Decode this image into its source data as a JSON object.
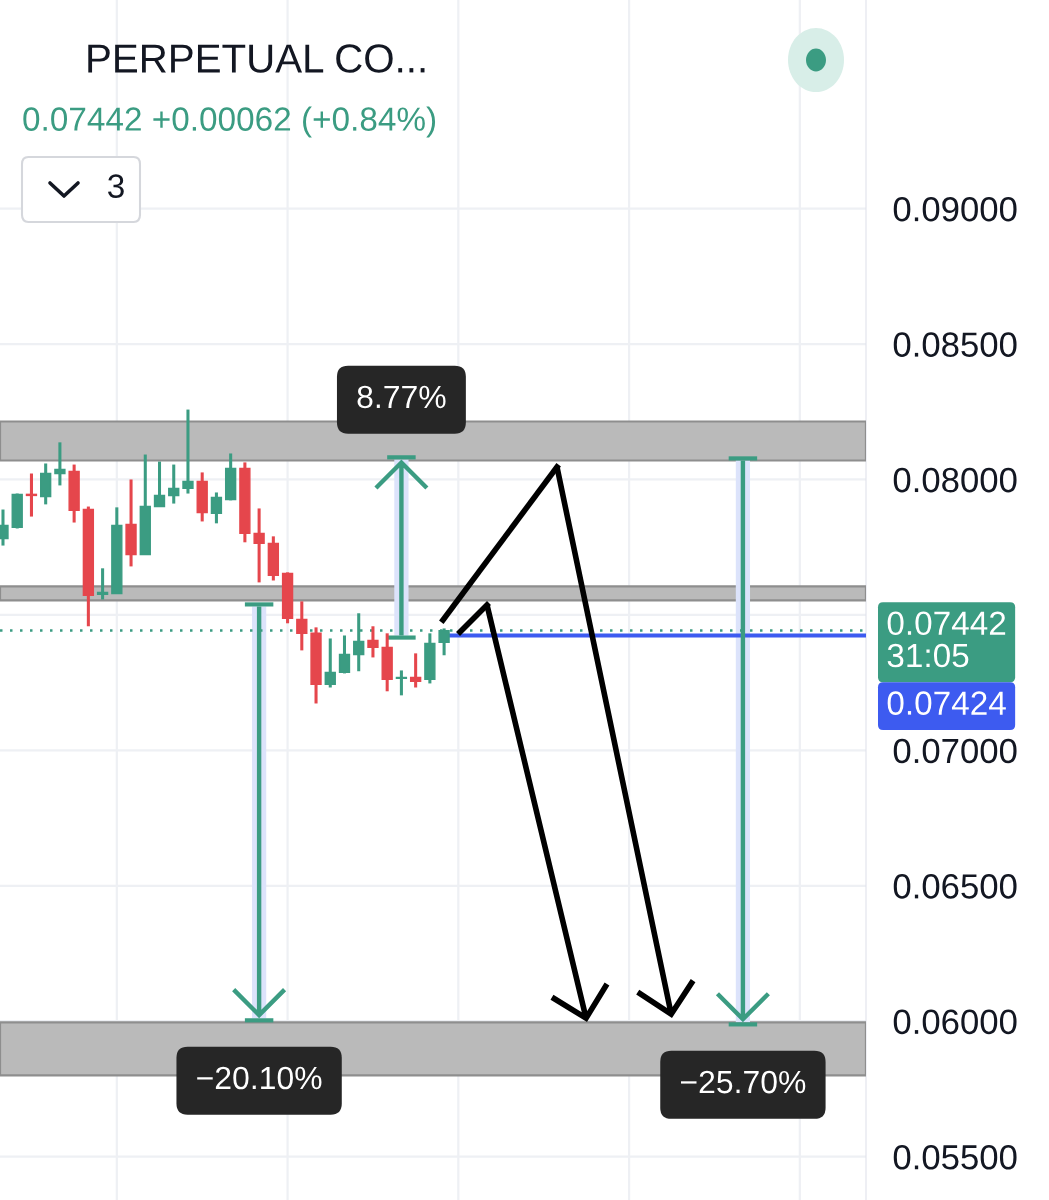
{
  "chart_data": {
    "type": "candlestick",
    "title": "PERPETUAL CO...",
    "subtitle": "0.07442 +0.00062 (+0.84%)",
    "annotations": [
      "3",
      {
        "text": "8.77%",
        "y": 0.08074
      },
      {
        "text": "−20.10%",
        "y": 0.06011
      },
      {
        "text": "−25.70%",
        "y": 0.05996
      }
    ],
    "categories": [
      null,
      null,
      null,
      null,
      null,
      null,
      null,
      null,
      null,
      null,
      null,
      null,
      null,
      null,
      null,
      null,
      null,
      null,
      null,
      null,
      null,
      null,
      null,
      null,
      null,
      null,
      null,
      null,
      null,
      null,
      null,
      null,
      null,
      null,
      null,
      null,
      null,
      null,
      null,
      null,
      null,
      null,
      null,
      null,
      null,
      null,
      null,
      null,
      null,
      null,
      null,
      null,
      null,
      null,
      null,
      null,
      null,
      null,
      null,
      null,
      null
    ],
    "ohlc": [
      [
        0.07782,
        0.07889,
        0.07756,
        0.0783
      ],
      [
        0.07823,
        0.07948,
        0.07819,
        0.07945
      ],
      [
        0.07945,
        0.08022,
        0.07863,
        0.07941
      ],
      [
        0.07937,
        0.08059,
        0.07908,
        0.08022
      ],
      [
        0.08022,
        0.08137,
        0.07978,
        0.08037
      ],
      [
        0.0803,
        0.08055,
        0.07841,
        0.07886
      ],
      [
        0.07889,
        0.079,
        0.07458,
        0.07572
      ],
      [
        0.07576,
        0.07672,
        0.07557,
        0.07583
      ],
      [
        0.07579,
        0.07897,
        0.07579,
        0.0783
      ],
      [
        0.07834,
        0.08,
        0.07679,
        0.07723
      ],
      [
        0.07723,
        0.08092,
        0.07723,
        0.079
      ],
      [
        0.079,
        0.08066,
        0.079,
        0.07941
      ],
      [
        0.07941,
        0.08055,
        0.07911,
        0.07967
      ],
      [
        0.07967,
        0.08258,
        0.07948,
        0.07993
      ],
      [
        0.07993,
        0.08026,
        0.07845,
        0.07878
      ],
      [
        0.07875,
        0.07952,
        0.07838,
        0.07934
      ],
      [
        0.07926,
        0.08096,
        0.07923,
        0.08041
      ],
      [
        0.08041,
        0.08063,
        0.07768,
        0.07801
      ],
      [
        0.07801,
        0.07893,
        0.0762,
        0.07764
      ],
      [
        0.07764,
        0.0779,
        0.07627,
        0.07646
      ],
      [
        0.07653,
        0.07657,
        0.07469,
        0.07487
      ],
      [
        0.07483,
        0.0755,
        0.07369,
        0.07432
      ],
      [
        0.07432,
        0.07454,
        0.07173,
        0.07244
      ],
      [
        0.07244,
        0.07413,
        0.07232,
        0.07288
      ],
      [
        0.07288,
        0.07424,
        0.07284,
        0.07354
      ],
      [
        0.07354,
        0.07506,
        0.07292,
        0.07402
      ],
      [
        0.07406,
        0.07458,
        0.07343,
        0.0738
      ],
      [
        0.0738,
        0.07432,
        0.07218,
        0.07262
      ],
      [
        0.07266,
        0.07295,
        0.07203,
        0.07269
      ],
      [
        0.07269,
        0.07358,
        0.07232,
        0.07255
      ],
      [
        0.07262,
        0.07432,
        0.07247,
        0.07395
      ],
      [
        0.07399,
        0.0745,
        0.07351,
        0.07442
      ],
      null,
      null,
      null,
      null,
      null,
      null,
      null,
      null,
      null,
      null,
      null,
      null,
      null,
      null,
      null,
      null,
      null,
      null,
      null,
      null,
      null,
      null,
      null,
      null,
      null,
      null,
      null,
      null,
      null
    ],
    "colors": [
      "#3b9c82",
      "#3b9c82",
      "#e5464c",
      "#3b9c82",
      "#3b9c82",
      "#e5464c",
      "#e5464c",
      "#3b9c82",
      "#3b9c82",
      "#e5464c",
      "#3b9c82",
      "#3b9c82",
      "#3b9c82",
      "#3b9c82",
      "#e5464c",
      "#3b9c82",
      "#3b9c82",
      "#e5464c",
      "#e5464c",
      "#e5464c",
      "#e5464c",
      "#e5464c",
      "#e5464c",
      "#3b9c82",
      "#3b9c82",
      "#3b9c82",
      "#e5464c",
      "#e5464c",
      "#3b9c82",
      "#e5464c",
      "#3b9c82",
      "#3b9c82",
      null,
      null,
      null,
      null,
      null,
      null,
      null,
      null,
      null,
      null,
      null,
      null,
      null,
      null,
      null,
      null,
      null,
      null,
      null,
      null,
      null,
      null,
      null,
      null,
      null,
      null,
      null,
      null,
      null
    ],
    "series": [
      {
        "type": "bar",
        "color": "#dce3fb",
        "base": [
          null,
          null,
          null,
          null,
          null,
          null,
          null,
          null,
          null,
          null,
          null,
          null,
          null,
          null,
          null,
          null,
          null,
          null,
          0.07531,
          null,
          null,
          null,
          null,
          null,
          null,
          null,
          null,
          null,
          0.07424,
          null,
          null,
          null,
          null,
          null,
          null,
          null,
          null,
          null,
          null,
          null,
          null,
          null,
          null,
          null,
          null,
          null,
          null,
          null,
          null,
          null,
          null,
          null,
          0.0807,
          null,
          null,
          null,
          null,
          null,
          null,
          null,
          null
        ],
        "values": [
          null,
          null,
          null,
          null,
          null,
          null,
          null,
          null,
          null,
          null,
          null,
          null,
          null,
          null,
          null,
          null,
          null,
          null,
          -0.0152,
          null,
          null,
          null,
          null,
          null,
          null,
          null,
          null,
          null,
          0.0065,
          null,
          null,
          null,
          null,
          null,
          null,
          null,
          null,
          null,
          null,
          null,
          null,
          null,
          null,
          null,
          null,
          null,
          null,
          null,
          null,
          null,
          null,
          null,
          -0.02074,
          null,
          null,
          null,
          null,
          null,
          null,
          null,
          null
        ]
      }
    ],
    "ylim": [
      0.0534,
      0.0977
    ],
    "yticks": [
      {
        "value": 0.055,
        "label": "0.05500"
      },
      {
        "value": 0.06,
        "label": "0.06000"
      },
      {
        "value": 0.065,
        "label": "0.06500"
      },
      {
        "value": 0.07,
        "label": "0.07000"
      },
      {
        "value": 0.075,
        "label": null
      },
      {
        "value": 0.08,
        "label": "0.08000"
      },
      {
        "value": 0.085,
        "label": "0.08500"
      },
      {
        "value": 0.09,
        "label": "0.09000"
      }
    ],
    "grid": true,
    "tick_labels": "y",
    "ref_lines": [
      {
        "axis": "y",
        "value": 0.07442,
        "label": "0.07442\n31:05",
        "color": "#3b9c82",
        "line_style": "dotted"
      },
      {
        "axis": "y",
        "value": 0.07424,
        "label": "0.07424",
        "color": "#3d5bf0",
        "line_style": "solid"
      }
    ],
    "bands": [
      {
        "axis": "y",
        "from": 0.0807,
        "to": 0.08214,
        "color": "#bababa"
      },
      {
        "axis": "y",
        "from": 0.07554,
        "to": 0.07605,
        "color": "#bababa"
      },
      {
        "axis": "y",
        "from": 0.058,
        "to": 0.05996,
        "color": "#bababa"
      }
    ]
  }
}
